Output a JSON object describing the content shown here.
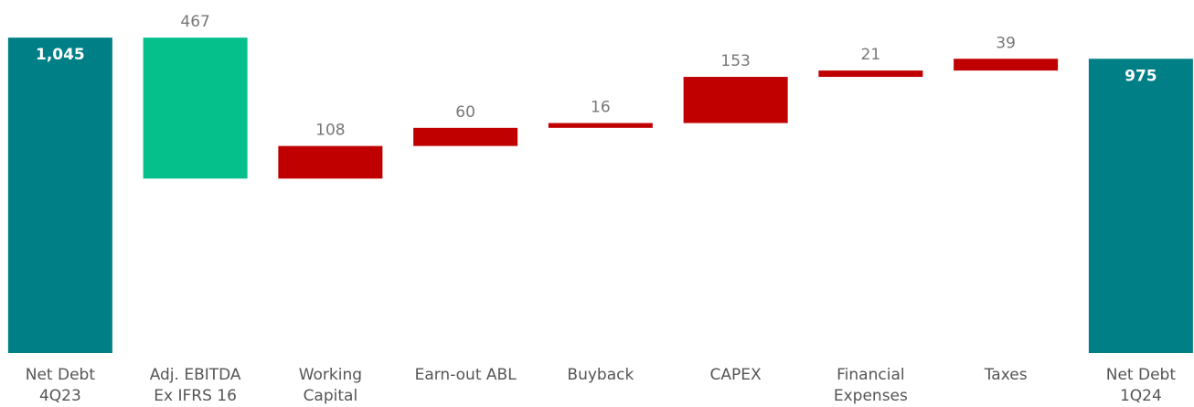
{
  "chart_data": {
    "type": "waterfall",
    "categories": [
      [
        "Net Debt",
        "4Q23"
      ],
      [
        "Adj. EBITDA",
        "Ex IFRS 16"
      ],
      [
        "Working",
        "Capital"
      ],
      [
        "Earn-out ABL"
      ],
      [
        "Buyback"
      ],
      [
        "CAPEX"
      ],
      [
        "Financial",
        "Expenses"
      ],
      [
        "Taxes"
      ],
      [
        "Net Debt",
        "1Q24"
      ]
    ],
    "values": [
      1045,
      467,
      108,
      60,
      16,
      153,
      21,
      39,
      975
    ],
    "value_labels": [
      "1,045",
      "467",
      "108",
      "60",
      "16",
      "153",
      "21",
      "39",
      "975"
    ],
    "kinds": [
      "total",
      "decrease",
      "increase",
      "increase",
      "increase",
      "increase",
      "increase",
      "increase",
      "total"
    ],
    "colors": {
      "total": "#007f86",
      "decrease": "#05c08b",
      "increase": "#c00000"
    }
  }
}
